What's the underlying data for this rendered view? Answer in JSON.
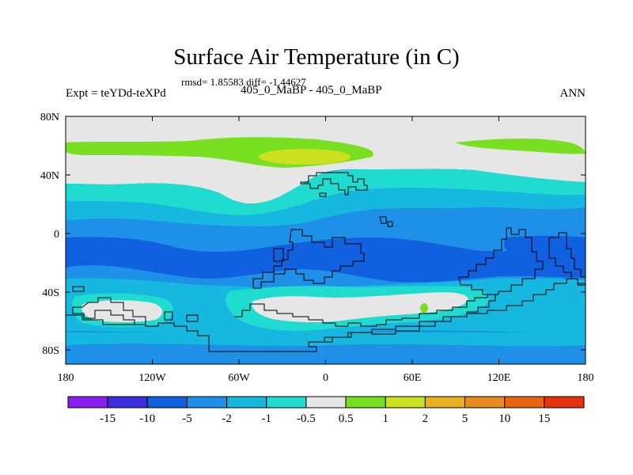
{
  "title": "Surface Air Temperature (in C)",
  "stats": "rmsd= 1.85583 diff= -1.44627",
  "subtitle": "405_0_MaBP - 405_0_MaBP",
  "left_label": "Expt = teYDd-teXPd",
  "right_label": "ANN",
  "lat_ticks": [
    "80N",
    "40N",
    "0",
    "40S",
    "80S"
  ],
  "lon_ticks": [
    "180",
    "120W",
    "60W",
    "0",
    "60E",
    "120E",
    "180"
  ],
  "colorbar": {
    "colors": [
      "#8a1ef0",
      "#3b2ee0",
      "#1060e0",
      "#1e90e8",
      "#16b8e0",
      "#20dcd0",
      "#e6e6e6",
      "#78e020",
      "#cce020",
      "#e8b020",
      "#e88a1e",
      "#e86414",
      "#e8320e"
    ],
    "labels": [
      "-15",
      "-10",
      "-5",
      "-2",
      "-1",
      "-0.5",
      "0.5",
      "1",
      "2",
      "5",
      "10",
      "15"
    ]
  },
  "field_colors": {
    "deep_blue": "#1060e0",
    "mid_blue": "#1e90e8",
    "light_blue": "#16b8e0",
    "cyan": "#20dcd0",
    "neutral": "#e6e6e6",
    "green": "#78e020",
    "yellow_green": "#cce020"
  }
}
